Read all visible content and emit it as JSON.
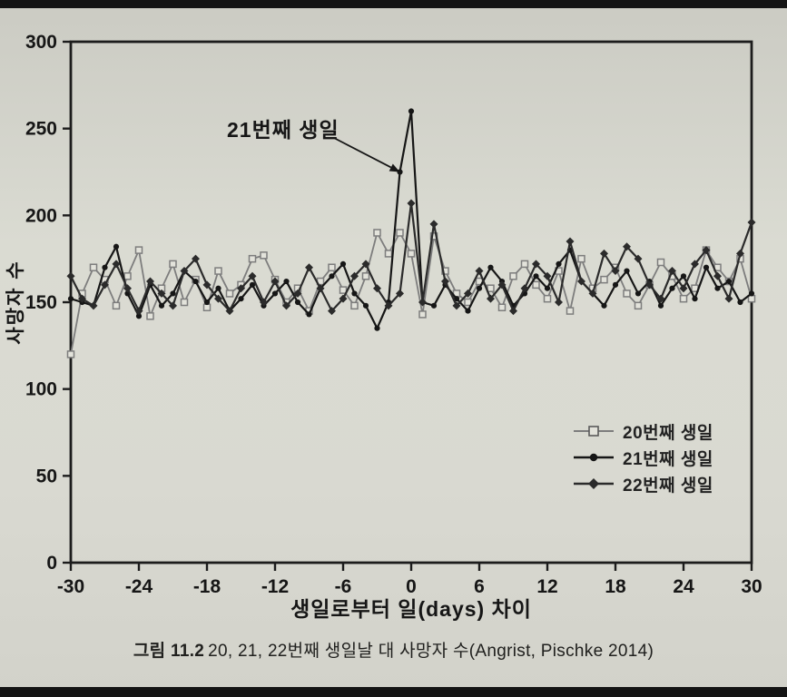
{
  "page": {
    "caption_prefix": "그림 11.2",
    "caption_text": "20, 21, 22번째 생일날 대 사망자 수(Angrist, Pischke 2014)"
  },
  "chart_data": {
    "type": "line",
    "title": "",
    "xlabel": "생일로부터 일(days) 차이",
    "ylabel": "사망자 수",
    "xlim": [
      -30,
      30
    ],
    "ylim": [
      0,
      300
    ],
    "xticks": [
      -30,
      -24,
      -18,
      -12,
      -6,
      0,
      6,
      12,
      18,
      24,
      30
    ],
    "yticks": [
      0,
      50,
      100,
      150,
      200,
      250,
      300
    ],
    "grid": false,
    "legend_position": "inside-bottom-right",
    "annotation": {
      "text": "21번째 생일",
      "points_to": {
        "x": -1,
        "y": 225
      }
    },
    "x": [
      -30,
      -29,
      -28,
      -27,
      -26,
      -25,
      -24,
      -23,
      -22,
      -21,
      -20,
      -19,
      -18,
      -17,
      -16,
      -15,
      -14,
      -13,
      -12,
      -11,
      -10,
      -9,
      -8,
      -7,
      -6,
      -5,
      -4,
      -3,
      -2,
      -1,
      0,
      1,
      2,
      3,
      4,
      5,
      6,
      7,
      8,
      9,
      10,
      11,
      12,
      13,
      14,
      15,
      16,
      17,
      18,
      19,
      20,
      21,
      22,
      23,
      24,
      25,
      26,
      27,
      28,
      29,
      30
    ],
    "series": [
      {
        "name": "20번째 생일",
        "marker": "open-square",
        "color": "#7d7d7d",
        "values": [
          120,
          155,
          170,
          163,
          148,
          165,
          180,
          142,
          158,
          172,
          150,
          163,
          147,
          168,
          155,
          160,
          175,
          177,
          163,
          150,
          158,
          145,
          162,
          170,
          157,
          148,
          165,
          190,
          178,
          190,
          178,
          143,
          188,
          168,
          155,
          150,
          162,
          158,
          147,
          165,
          172,
          160,
          152,
          168,
          145,
          175,
          158,
          163,
          170,
          155,
          148,
          160,
          173,
          165,
          152,
          158,
          180,
          170,
          162,
          175,
          152
        ]
      },
      {
        "name": "21번째 생일",
        "marker": "filled-circle",
        "color": "#161616",
        "values": [
          152,
          150,
          148,
          170,
          182,
          155,
          142,
          160,
          148,
          155,
          168,
          162,
          150,
          158,
          145,
          152,
          160,
          148,
          155,
          162,
          150,
          143,
          158,
          165,
          172,
          155,
          148,
          135,
          150,
          225,
          260,
          150,
          148,
          160,
          152,
          145,
          158,
          170,
          162,
          148,
          155,
          165,
          158,
          172,
          180,
          162,
          155,
          148,
          160,
          168,
          155,
          162,
          148,
          158,
          165,
          152,
          170,
          158,
          162,
          150,
          155
        ]
      },
      {
        "name": "22번째 생일",
        "marker": "filled-diamond",
        "color": "#2b2b2b",
        "values": [
          165,
          152,
          148,
          160,
          172,
          158,
          145,
          162,
          155,
          148,
          168,
          175,
          160,
          152,
          145,
          158,
          165,
          150,
          162,
          148,
          155,
          170,
          158,
          145,
          152,
          165,
          172,
          158,
          148,
          155,
          207,
          150,
          195,
          162,
          148,
          155,
          168,
          152,
          160,
          145,
          158,
          172,
          165,
          150,
          185,
          162,
          155,
          178,
          168,
          182,
          175,
          160,
          152,
          168,
          158,
          172,
          180,
          165,
          152,
          178,
          196
        ]
      }
    ]
  }
}
